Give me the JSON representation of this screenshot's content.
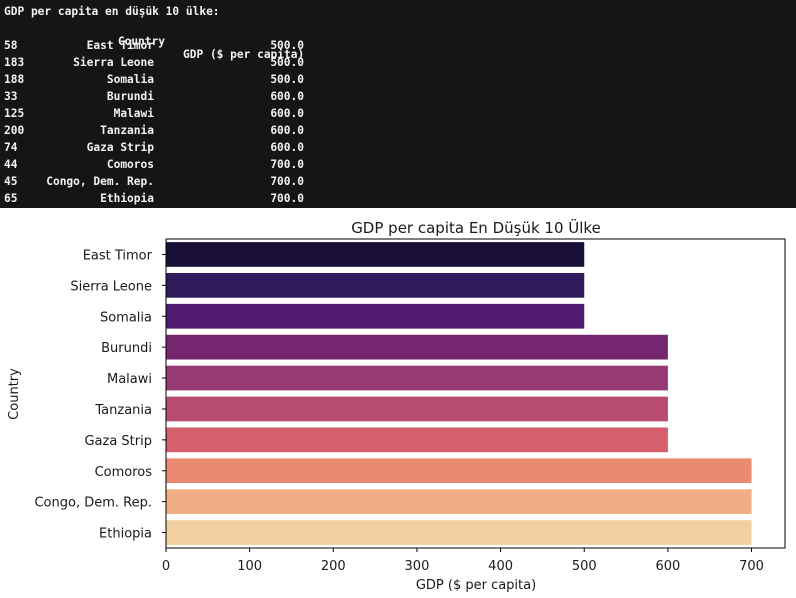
{
  "console": {
    "heading": "GDP per capita en düşük 10 ülke:",
    "col_country": "Country",
    "col_gdp": "GDP ($ per capita)",
    "rows": [
      {
        "index": "58",
        "country": "East Timor",
        "gdp": "500.0"
      },
      {
        "index": "183",
        "country": "Sierra Leone",
        "gdp": "500.0"
      },
      {
        "index": "188",
        "country": "Somalia",
        "gdp": "500.0"
      },
      {
        "index": "33",
        "country": "Burundi",
        "gdp": "600.0"
      },
      {
        "index": "125",
        "country": "Malawi",
        "gdp": "600.0"
      },
      {
        "index": "200",
        "country": "Tanzania",
        "gdp": "600.0"
      },
      {
        "index": "74",
        "country": "Gaza Strip",
        "gdp": "600.0"
      },
      {
        "index": "44",
        "country": "Comoros",
        "gdp": "700.0"
      },
      {
        "index": "45",
        "country": "Congo, Dem. Rep.",
        "gdp": "700.0"
      },
      {
        "index": "65",
        "country": "Ethiopia",
        "gdp": "700.0"
      }
    ]
  },
  "chart_data": {
    "type": "bar",
    "orientation": "horizontal",
    "title": "GDP per capita En Düşük 10 Ülke",
    "xlabel": "GDP ($ per capita)",
    "ylabel": "Country",
    "categories": [
      "East Timor",
      "Sierra Leone",
      "Somalia",
      "Burundi",
      "Malawi",
      "Tanzania",
      "Gaza Strip",
      "Comoros",
      "Congo, Dem. Rep.",
      "Ethiopia"
    ],
    "values": [
      500,
      500,
      500,
      600,
      600,
      600,
      600,
      700,
      700,
      700
    ],
    "colors": [
      "#1a1038",
      "#321b5d",
      "#51196f",
      "#74266f",
      "#953a72",
      "#b84b71",
      "#d65f6e",
      "#ea8b71",
      "#efae83",
      "#f2cf9e"
    ],
    "xlim": [
      0,
      740
    ],
    "xticks": [
      0,
      100,
      200,
      300,
      400,
      500,
      600,
      700
    ],
    "grid": false,
    "legend": "none"
  }
}
